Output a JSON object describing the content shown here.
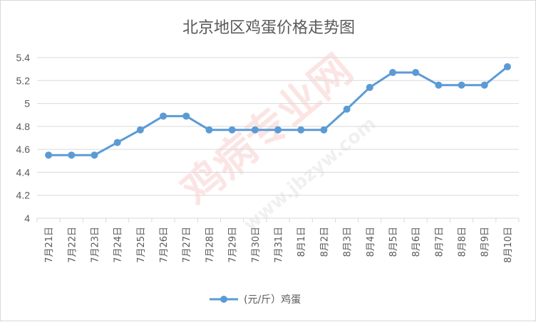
{
  "chart_data": {
    "type": "line",
    "title": "北京地区鸡蛋价格走势图",
    "categories": [
      "7月21日",
      "7月22日",
      "7月23日",
      "7月24日",
      "7月25日",
      "7月26日",
      "7月27日",
      "7月28日",
      "7月29日",
      "7月30日",
      "7月31日",
      "8月1日",
      "8月2日",
      "8月3日",
      "8月4日",
      "8月5日",
      "8月6日",
      "8月7日",
      "8月8日",
      "8月9日",
      "8月10日"
    ],
    "series": [
      {
        "name": "(元/斤）鸡蛋",
        "values": [
          4.55,
          4.55,
          4.55,
          4.66,
          4.77,
          4.89,
          4.89,
          4.77,
          4.77,
          4.77,
          4.77,
          4.77,
          4.77,
          4.95,
          5.14,
          5.27,
          5.27,
          5.16,
          5.16,
          5.16,
          5.32
        ]
      }
    ],
    "ylim": [
      4,
      5.4
    ],
    "yticks": [
      "4",
      "4.2",
      "4.4",
      "4.6",
      "4.8",
      "5",
      "5.2",
      "5.4"
    ],
    "grid": true,
    "legend": "bottom",
    "colors": {
      "line": "#5b9bd5",
      "grid": "#d9d9d9",
      "text": "#595959"
    }
  },
  "watermark": {
    "text1": "鸡病专业网",
    "text2": "www.jbzyw.com"
  }
}
